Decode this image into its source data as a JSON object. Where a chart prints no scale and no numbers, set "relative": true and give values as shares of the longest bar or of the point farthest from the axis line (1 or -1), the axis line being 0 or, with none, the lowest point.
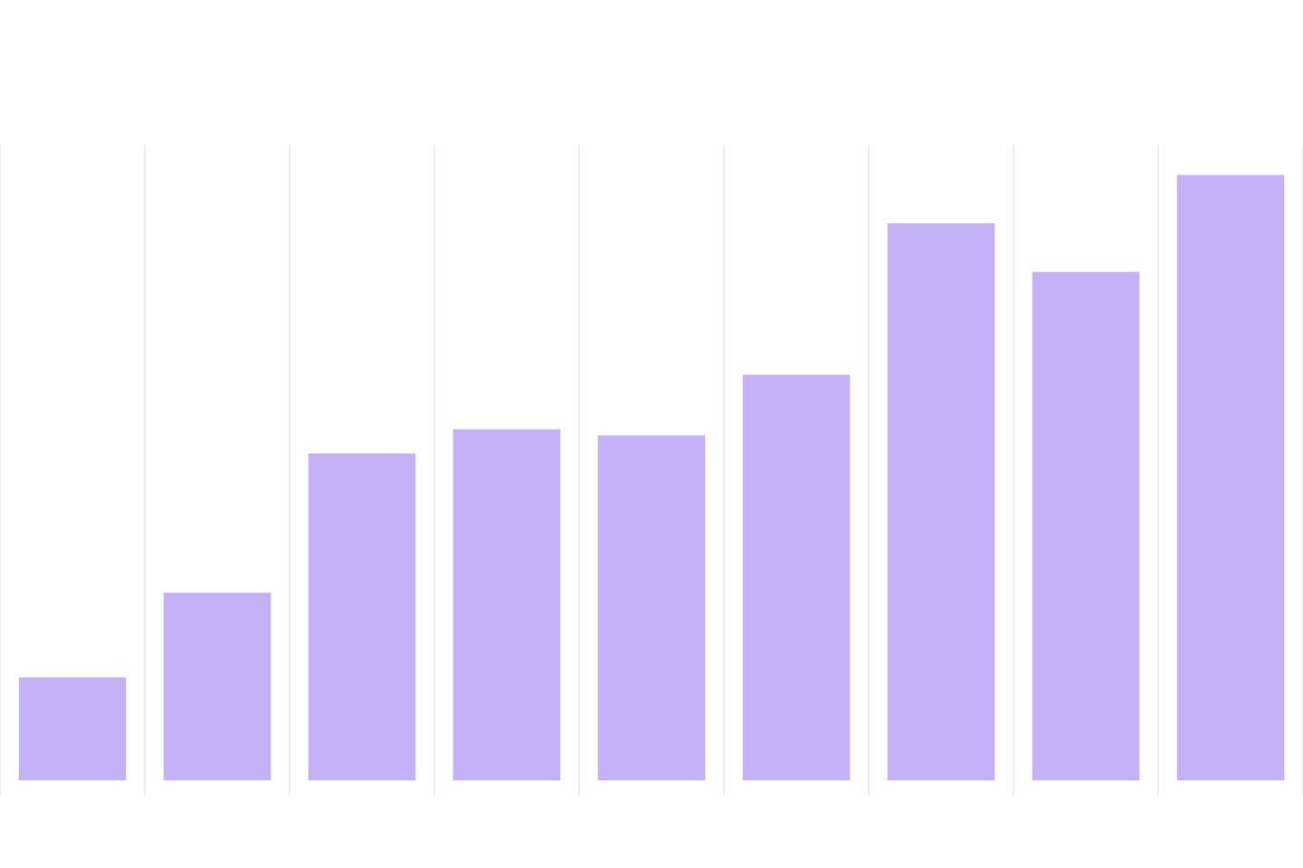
{
  "chart_data": {
    "type": "bar",
    "relative": true,
    "categories": [
      null,
      null,
      null,
      null,
      null,
      null,
      null,
      null,
      null
    ],
    "values": [
      0.17,
      0.31,
      0.54,
      0.58,
      0.57,
      0.67,
      0.92,
      0.84,
      1
    ],
    "color": "#c4b1f8",
    "grid": "x"
  }
}
